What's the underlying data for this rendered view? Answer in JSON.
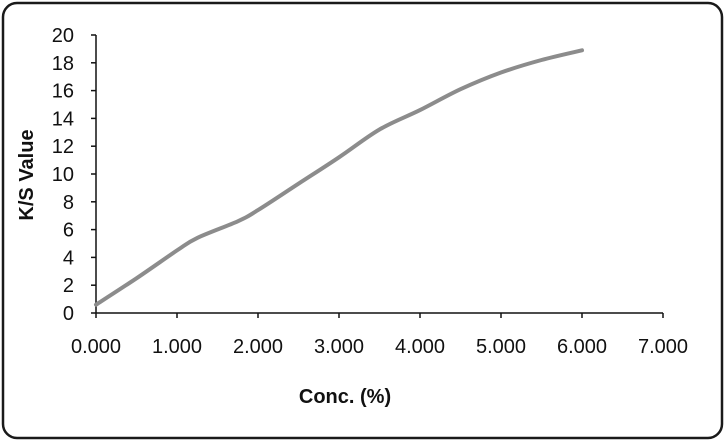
{
  "chart_data": {
    "type": "line",
    "title": "",
    "xlabel": "Conc. (%)",
    "ylabel": "K/S Value",
    "xlim": [
      0,
      7
    ],
    "ylim": [
      0,
      20
    ],
    "x_ticks": [
      "0.000",
      "1.000",
      "2.000",
      "3.000",
      "4.000",
      "5.000",
      "6.000",
      "7.000"
    ],
    "y_ticks": [
      "0",
      "2",
      "4",
      "6",
      "8",
      "10",
      "12",
      "14",
      "16",
      "18",
      "20"
    ],
    "grid": false,
    "legend": "none",
    "series": [
      {
        "color": "#8c8c8c",
        "x": [
          0.0,
          0.5,
          1.0,
          1.25,
          1.75,
          2.0,
          2.5,
          3.0,
          3.5,
          4.0,
          4.5,
          5.0,
          5.5,
          6.0
        ],
        "y": [
          0.6,
          2.5,
          4.5,
          5.4,
          6.6,
          7.4,
          9.3,
          11.2,
          13.2,
          14.6,
          16.1,
          17.3,
          18.2,
          18.9
        ]
      }
    ]
  }
}
